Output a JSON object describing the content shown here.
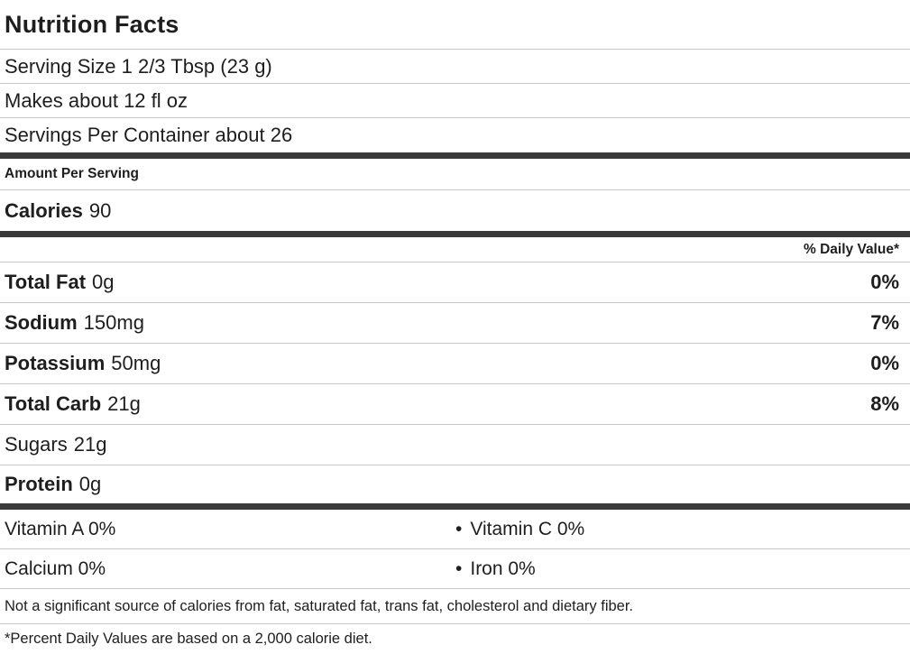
{
  "label": {
    "title": "Nutrition Facts",
    "serving": {
      "serving_size": "Serving Size 1 2/3 Tbsp (23 g)",
      "makes": "Makes about 12 fl oz",
      "servings_per_container": "Servings Per Container about 26"
    },
    "amount_per_serving": "Amount Per Serving",
    "calories": {
      "name": "Calories",
      "value": "90"
    },
    "daily_value_header": "% Daily Value*",
    "nutrients": [
      {
        "name": "Total Fat",
        "amount": "0g",
        "daily_value": "0%"
      },
      {
        "name": "Sodium",
        "amount": "150mg",
        "daily_value": "7%"
      },
      {
        "name": "Potassium",
        "amount": "50mg",
        "daily_value": "0%"
      },
      {
        "name": "Total Carb",
        "amount": "21g",
        "daily_value": "8%"
      },
      {
        "name": "Sugars",
        "amount": "21g",
        "daily_value": ""
      },
      {
        "name": "Protein",
        "amount": "0g",
        "daily_value": ""
      }
    ],
    "micronutrients": [
      {
        "left": "Vitamin A 0%",
        "bullet": "•",
        "right": "Vitamin C 0%"
      },
      {
        "left": "Calcium 0%",
        "bullet": "•",
        "right": "Iron 0%"
      }
    ],
    "footnotes": {
      "not_significant": "Not a significant source of calories from fat, saturated fat, trans fat, cholesterol and dietary fiber.",
      "percent_daily": "*Percent Daily Values are based on a 2,000 calorie diet."
    },
    "colors": {
      "text": "#1e1e1e",
      "thin_rule": "#c7c7c7",
      "thick_rule": "#3a3a3a"
    }
  }
}
